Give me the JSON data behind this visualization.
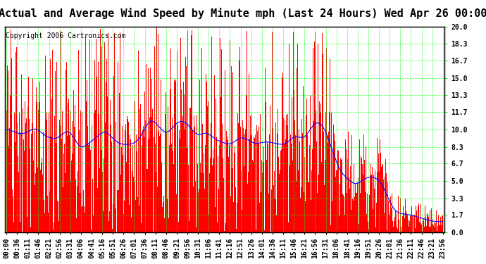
{
  "title": "Actual and Average Wind Speed by Minute mph (Last 24 Hours) Wed Apr 26 00:00",
  "copyright": "Copyright 2006 Cartronics.com",
  "ylabel_right_ticks": [
    0.0,
    1.7,
    3.3,
    5.0,
    6.7,
    8.3,
    10.0,
    11.7,
    13.3,
    15.0,
    16.7,
    18.3,
    20.0
  ],
  "ylim": [
    0.0,
    20.0
  ],
  "background_color": "#ffffff",
  "plot_bg_color": "#ffffff",
  "grid_color": "#00ff00",
  "bar_color": "#ff0000",
  "avg_line_color": "#0000ff",
  "title_fontsize": 11,
  "copyright_fontsize": 7,
  "tick_label_fontsize": 7,
  "x_tick_interval": 35,
  "x_labels": [
    "00:00",
    "00:36",
    "01:11",
    "01:46",
    "02:21",
    "02:56",
    "03:31",
    "04:06",
    "04:41",
    "05:16",
    "05:51",
    "06:26",
    "07:01",
    "07:36",
    "08:11",
    "08:46",
    "09:21",
    "09:56",
    "10:31",
    "11:06",
    "11:41",
    "12:16",
    "12:51",
    "13:26",
    "14:01",
    "14:36",
    "15:11",
    "15:46",
    "16:21",
    "16:56",
    "17:31",
    "18:06",
    "18:41",
    "19:16",
    "19:51",
    "20:26",
    "21:01",
    "21:36",
    "22:11",
    "22:46",
    "23:21",
    "23:56"
  ],
  "num_minutes": 1440
}
